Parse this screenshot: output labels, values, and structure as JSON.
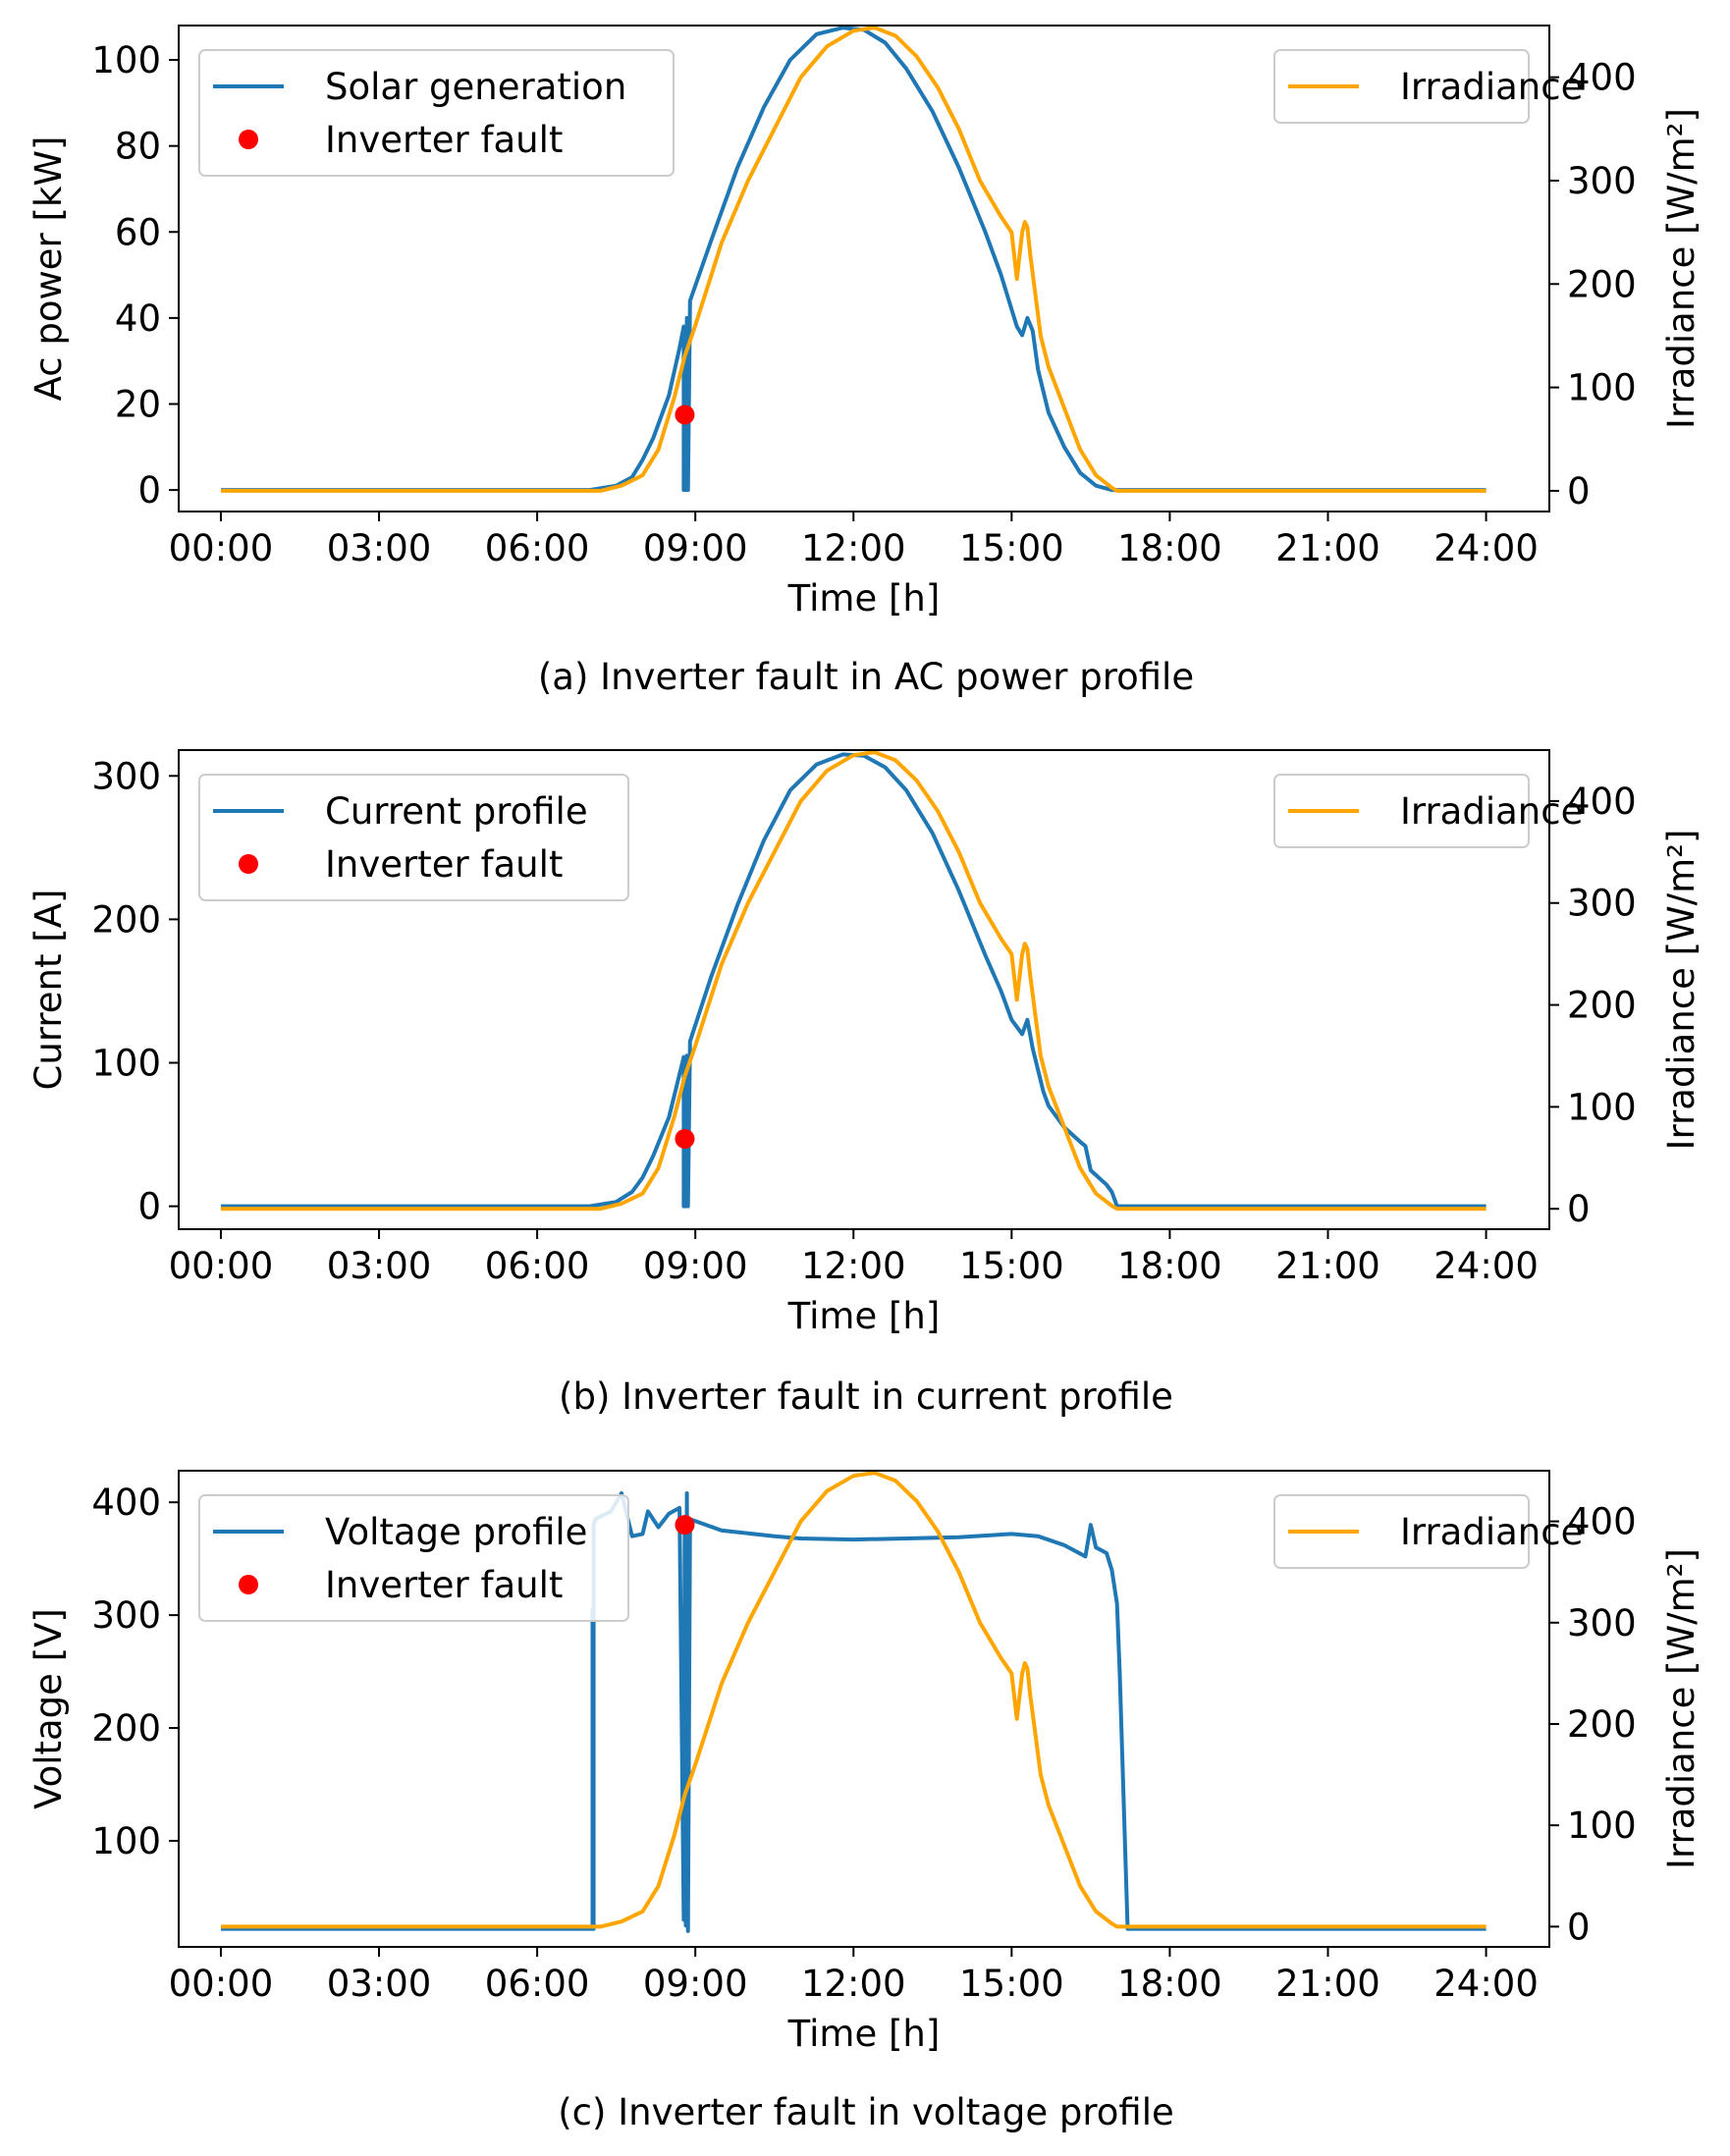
{
  "colors": {
    "solar": "#1f77b4",
    "irradiance": "#ffa500",
    "fault": "#ff0000",
    "axis": "#000000",
    "legend_edge": "#cccccc"
  },
  "chart_data": [
    {
      "type": "line",
      "caption": "(a) Inverter fault in AC power profile",
      "xlabel": "Time [h]",
      "ylabel": "Ac power [kW]",
      "y2label": "Irradiance [W/m²]",
      "xlim": [
        -0.8,
        25.2
      ],
      "ylim": [
        -5,
        108
      ],
      "y2lim": [
        -20,
        450
      ],
      "xticks": [
        0,
        3,
        6,
        9,
        12,
        15,
        18,
        21,
        24
      ],
      "xtick_labels": [
        "00:00",
        "03:00",
        "06:00",
        "09:00",
        "12:00",
        "15:00",
        "18:00",
        "21:00",
        "24:00"
      ],
      "yticks": [
        0,
        20,
        40,
        60,
        80,
        100
      ],
      "y2ticks": [
        0,
        100,
        200,
        300,
        400
      ],
      "fault_point": {
        "label": "Inverter fault",
        "x": 8.8,
        "y": 17.5
      },
      "legend_left": [
        "Solar generation",
        "Inverter fault"
      ],
      "legend_right": [
        "Irradiance"
      ],
      "series": [
        {
          "name": "Solar generation",
          "axis": "left",
          "x": [
            0,
            7.0,
            7.5,
            7.8,
            8.0,
            8.2,
            8.5,
            8.7,
            8.78,
            8.78,
            8.8,
            8.82,
            8.84,
            8.86,
            8.9,
            9.3,
            9.8,
            10.3,
            10.8,
            11.3,
            11.8,
            12.2,
            12.6,
            13.0,
            13.5,
            14.0,
            14.5,
            14.8,
            15.0,
            15.1,
            15.2,
            15.3,
            15.4,
            15.5,
            15.7,
            16.0,
            16.3,
            16.6,
            16.9,
            17.0,
            24
          ],
          "y": [
            0,
            0,
            1,
            3,
            7,
            12,
            22,
            33,
            38,
            0,
            30,
            0,
            40,
            0,
            44,
            58,
            75,
            89,
            100,
            106,
            107.5,
            107,
            104,
            98,
            88,
            75,
            60,
            50,
            42,
            38,
            36,
            40,
            37,
            28,
            18,
            10,
            4,
            1,
            0,
            0,
            0
          ]
        },
        {
          "name": "Irradiance",
          "axis": "right",
          "x": [
            0,
            7.2,
            7.6,
            8.0,
            8.3,
            8.6,
            8.8,
            9.0,
            9.5,
            10.0,
            10.5,
            11.0,
            11.5,
            12.0,
            12.4,
            12.8,
            13.2,
            13.6,
            14.0,
            14.4,
            14.8,
            15.0,
            15.1,
            15.2,
            15.25,
            15.3,
            15.35,
            15.45,
            15.55,
            15.7,
            16.0,
            16.3,
            16.6,
            16.9,
            17.0,
            24
          ],
          "y": [
            0,
            0,
            5,
            15,
            40,
            90,
            130,
            160,
            240,
            300,
            350,
            400,
            430,
            445,
            448,
            440,
            420,
            390,
            350,
            300,
            265,
            250,
            205,
            250,
            260,
            255,
            230,
            190,
            150,
            120,
            80,
            40,
            15,
            3,
            0,
            0
          ]
        }
      ]
    },
    {
      "type": "line",
      "caption": "(b) Inverter fault in current profile",
      "xlabel": "Time [h]",
      "ylabel": "Current [A]",
      "y2label": "Irradiance [W/m²]",
      "xlim": [
        -0.8,
        25.2
      ],
      "ylim": [
        -16,
        318
      ],
      "y2lim": [
        -20,
        450
      ],
      "xticks": [
        0,
        3,
        6,
        9,
        12,
        15,
        18,
        21,
        24
      ],
      "xtick_labels": [
        "00:00",
        "03:00",
        "06:00",
        "09:00",
        "12:00",
        "15:00",
        "18:00",
        "21:00",
        "24:00"
      ],
      "yticks": [
        0,
        100,
        200,
        300
      ],
      "y2ticks": [
        0,
        100,
        200,
        300,
        400
      ],
      "fault_point": {
        "label": "Inverter fault",
        "x": 8.8,
        "y": 47
      },
      "legend_left": [
        "Current profile",
        "Inverter fault"
      ],
      "legend_right": [
        "Irradiance"
      ],
      "series": [
        {
          "name": "Current profile",
          "axis": "left",
          "x": [
            0,
            7.0,
            7.5,
            7.8,
            8.0,
            8.2,
            8.5,
            8.7,
            8.78,
            8.78,
            8.8,
            8.82,
            8.84,
            8.86,
            8.9,
            9.3,
            9.8,
            10.3,
            10.8,
            11.3,
            11.8,
            12.2,
            12.6,
            13.0,
            13.5,
            14.0,
            14.5,
            14.8,
            15.0,
            15.1,
            15.2,
            15.3,
            15.4,
            15.5,
            15.6,
            15.7,
            16.0,
            16.3,
            16.4,
            16.5,
            16.8,
            16.9,
            17.0,
            24
          ],
          "y": [
            0,
            0,
            3,
            10,
            20,
            35,
            62,
            92,
            104,
            0,
            80,
            0,
            105,
            0,
            115,
            160,
            210,
            255,
            290,
            308,
            315,
            314,
            306,
            290,
            260,
            220,
            175,
            150,
            130,
            125,
            120,
            130,
            110,
            95,
            80,
            70,
            55,
            45,
            42,
            25,
            15,
            10,
            0,
            0
          ]
        },
        {
          "name": "Irradiance",
          "axis": "right",
          "x": [
            0,
            7.2,
            7.6,
            8.0,
            8.3,
            8.6,
            8.8,
            9.0,
            9.5,
            10.0,
            10.5,
            11.0,
            11.5,
            12.0,
            12.4,
            12.8,
            13.2,
            13.6,
            14.0,
            14.4,
            14.8,
            15.0,
            15.1,
            15.2,
            15.25,
            15.3,
            15.35,
            15.45,
            15.55,
            15.7,
            16.0,
            16.3,
            16.6,
            16.9,
            17.0,
            24
          ],
          "y": [
            0,
            0,
            5,
            15,
            40,
            90,
            130,
            160,
            240,
            300,
            350,
            400,
            430,
            445,
            448,
            440,
            420,
            390,
            350,
            300,
            265,
            250,
            205,
            250,
            260,
            255,
            230,
            190,
            150,
            120,
            80,
            40,
            15,
            3,
            0,
            0
          ]
        }
      ]
    },
    {
      "type": "line",
      "caption": "(c) Inverter fault in voltage profile",
      "xlabel": "Time [h]",
      "ylabel": "Voltage [V]",
      "y2label": "Irradiance [W/m²]",
      "xlim": [
        -0.8,
        25.2
      ],
      "ylim": [
        6,
        428
      ],
      "y2lim": [
        -20,
        450
      ],
      "xticks": [
        0,
        3,
        6,
        9,
        12,
        15,
        18,
        21,
        24
      ],
      "xtick_labels": [
        "00:00",
        "03:00",
        "06:00",
        "09:00",
        "12:00",
        "15:00",
        "18:00",
        "21:00",
        "24:00"
      ],
      "yticks": [
        100,
        200,
        300,
        400
      ],
      "y2ticks": [
        0,
        100,
        200,
        300,
        400
      ],
      "fault_point": {
        "label": "Inverter fault",
        "x": 8.8,
        "y": 380
      },
      "legend_left": [
        "Voltage profile",
        "Inverter fault"
      ],
      "legend_right": [
        "Irradiance"
      ],
      "series": [
        {
          "name": "Voltage profile",
          "axis": "left",
          "x": [
            0,
            7.05,
            7.05,
            7.07,
            7.07,
            7.1,
            7.4,
            7.6,
            7.8,
            8.0,
            8.1,
            8.3,
            8.5,
            8.7,
            8.78,
            8.8,
            8.82,
            8.84,
            8.86,
            8.9,
            9.5,
            10.5,
            11.0,
            12.0,
            13.0,
            14.0,
            15.0,
            15.5,
            16.0,
            16.4,
            16.5,
            16.6,
            16.8,
            16.9,
            17.0,
            17.05,
            17.2,
            24
          ],
          "y": [
            22,
            22,
            305,
            22,
            380,
            385,
            392,
            408,
            370,
            372,
            392,
            378,
            390,
            395,
            30,
            385,
            25,
            408,
            20,
            385,
            375,
            370,
            368,
            367,
            368,
            369,
            372,
            370,
            362,
            352,
            380,
            360,
            355,
            340,
            310,
            250,
            22,
            22
          ]
        },
        {
          "name": "Irradiance",
          "axis": "right",
          "x": [
            0,
            7.2,
            7.6,
            8.0,
            8.3,
            8.6,
            8.8,
            9.0,
            9.5,
            10.0,
            10.5,
            11.0,
            11.5,
            12.0,
            12.4,
            12.8,
            13.2,
            13.6,
            14.0,
            14.4,
            14.8,
            15.0,
            15.1,
            15.2,
            15.25,
            15.3,
            15.35,
            15.45,
            15.55,
            15.7,
            16.0,
            16.3,
            16.6,
            16.9,
            17.0,
            24
          ],
          "y": [
            0,
            0,
            5,
            15,
            40,
            90,
            130,
            160,
            240,
            300,
            350,
            400,
            430,
            445,
            448,
            440,
            420,
            390,
            350,
            300,
            265,
            250,
            205,
            250,
            260,
            255,
            230,
            190,
            150,
            120,
            80,
            40,
            15,
            3,
            0,
            0
          ]
        }
      ]
    }
  ]
}
